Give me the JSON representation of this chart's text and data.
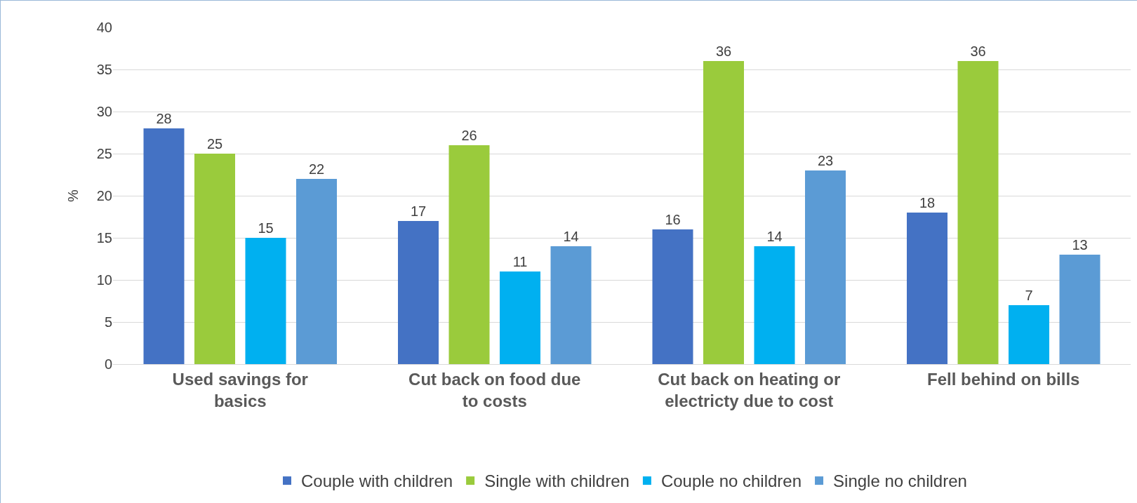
{
  "chart_data": {
    "type": "bar",
    "ylabel": "%",
    "categories": [
      "Used savings for basics",
      "Cut back on food due to costs",
      "Cut back on heating or electricty due to cost",
      "Fell behind on bills"
    ],
    "series": [
      {
        "name": "Couple with children",
        "color": "#4472c4",
        "values": [
          28,
          17,
          16,
          18
        ]
      },
      {
        "name": "Single with children",
        "color": "#9acb3c",
        "values": [
          25,
          26,
          36,
          36
        ]
      },
      {
        "name": "Couple no children",
        "color": "#00b0f0",
        "values": [
          15,
          11,
          14,
          7
        ]
      },
      {
        "name": "Single no children",
        "color": "#5b9bd5",
        "values": [
          22,
          14,
          23,
          13
        ]
      }
    ],
    "ylim": [
      0,
      40
    ],
    "yticks": [
      0,
      5,
      10,
      15,
      20,
      25,
      30,
      35,
      40
    ],
    "grid": "y",
    "legend": "bottom",
    "data_labels": true
  }
}
